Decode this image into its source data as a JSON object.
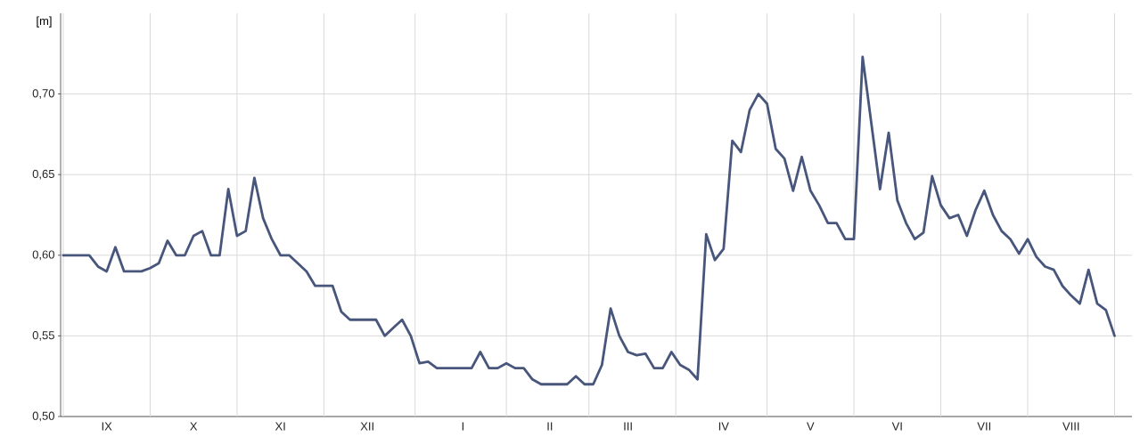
{
  "chart_data": {
    "type": "line",
    "ylabel": "[m]",
    "ylim": [
      0.5,
      0.75
    ],
    "grid": true,
    "categories": [
      null,
      null,
      null,
      null,
      null,
      "IX",
      null,
      null,
      null,
      null,
      null,
      null,
      null,
      null,
      null,
      "X",
      null,
      null,
      null,
      null,
      null,
      null,
      null,
      null,
      null,
      "XI",
      null,
      null,
      null,
      null,
      null,
      null,
      null,
      null,
      null,
      "XII",
      null,
      null,
      null,
      null,
      null,
      null,
      null,
      null,
      null,
      null,
      "I",
      null,
      null,
      null,
      null,
      null,
      null,
      null,
      null,
      null,
      "II",
      null,
      null,
      null,
      null,
      null,
      null,
      null,
      null,
      "III",
      null,
      null,
      null,
      null,
      null,
      null,
      null,
      null,
      null,
      null,
      "IV",
      null,
      null,
      null,
      null,
      null,
      null,
      null,
      null,
      null,
      "V",
      null,
      null,
      null,
      null,
      null,
      null,
      null,
      null,
      null,
      "VI",
      null,
      null,
      null,
      null,
      null,
      null,
      null,
      null,
      null,
      "VII",
      null,
      null,
      null,
      null,
      null,
      null,
      null,
      null,
      null,
      "VIII",
      null,
      null,
      null,
      null,
      null
    ],
    "yticks": [
      {
        "value": 0.5,
        "label": "0,50"
      },
      {
        "value": 0.55,
        "label": "0,55"
      },
      {
        "value": 0.6,
        "label": "0,60"
      },
      {
        "value": 0.65,
        "label": "0,65"
      },
      {
        "value": 0.7,
        "label": "0,70"
      }
    ],
    "series": [
      {
        "color": "#48567c",
        "values": [
          0.6,
          0.6,
          0.6,
          0.6,
          0.593,
          0.59,
          0.605,
          0.59,
          0.59,
          0.59,
          0.592,
          0.595,
          0.609,
          0.6,
          0.6,
          0.612,
          0.615,
          0.6,
          0.6,
          0.641,
          0.612,
          0.615,
          0.648,
          0.623,
          0.61,
          0.6,
          0.6,
          0.595,
          0.59,
          0.581,
          0.581,
          0.581,
          0.565,
          0.56,
          0.56,
          0.56,
          0.56,
          0.55,
          0.555,
          0.56,
          0.55,
          0.533,
          0.534,
          0.53,
          0.53,
          0.53,
          0.53,
          0.53,
          0.54,
          0.53,
          0.53,
          0.533,
          0.53,
          0.53,
          0.523,
          0.52,
          0.52,
          0.52,
          0.52,
          0.525,
          0.52,
          0.52,
          0.532,
          0.567,
          0.55,
          0.54,
          0.538,
          0.539,
          0.53,
          0.53,
          0.54,
          0.532,
          0.529,
          0.523,
          0.613,
          0.597,
          0.604,
          0.671,
          0.664,
          0.69,
          0.7,
          0.694,
          0.666,
          0.66,
          0.64,
          0.661,
          0.64,
          0.631,
          0.62,
          0.62,
          0.61,
          0.61,
          0.723,
          0.682,
          0.641,
          0.676,
          0.634,
          0.62,
          0.61,
          0.614,
          0.649,
          0.631,
          0.623,
          0.625,
          0.612,
          0.628,
          0.64,
          0.625,
          0.615,
          0.61,
          0.601,
          0.61,
          0.599,
          0.593,
          0.591,
          0.581,
          0.575,
          0.57,
          0.591,
          0.57,
          0.566,
          0.55
        ]
      }
    ]
  }
}
